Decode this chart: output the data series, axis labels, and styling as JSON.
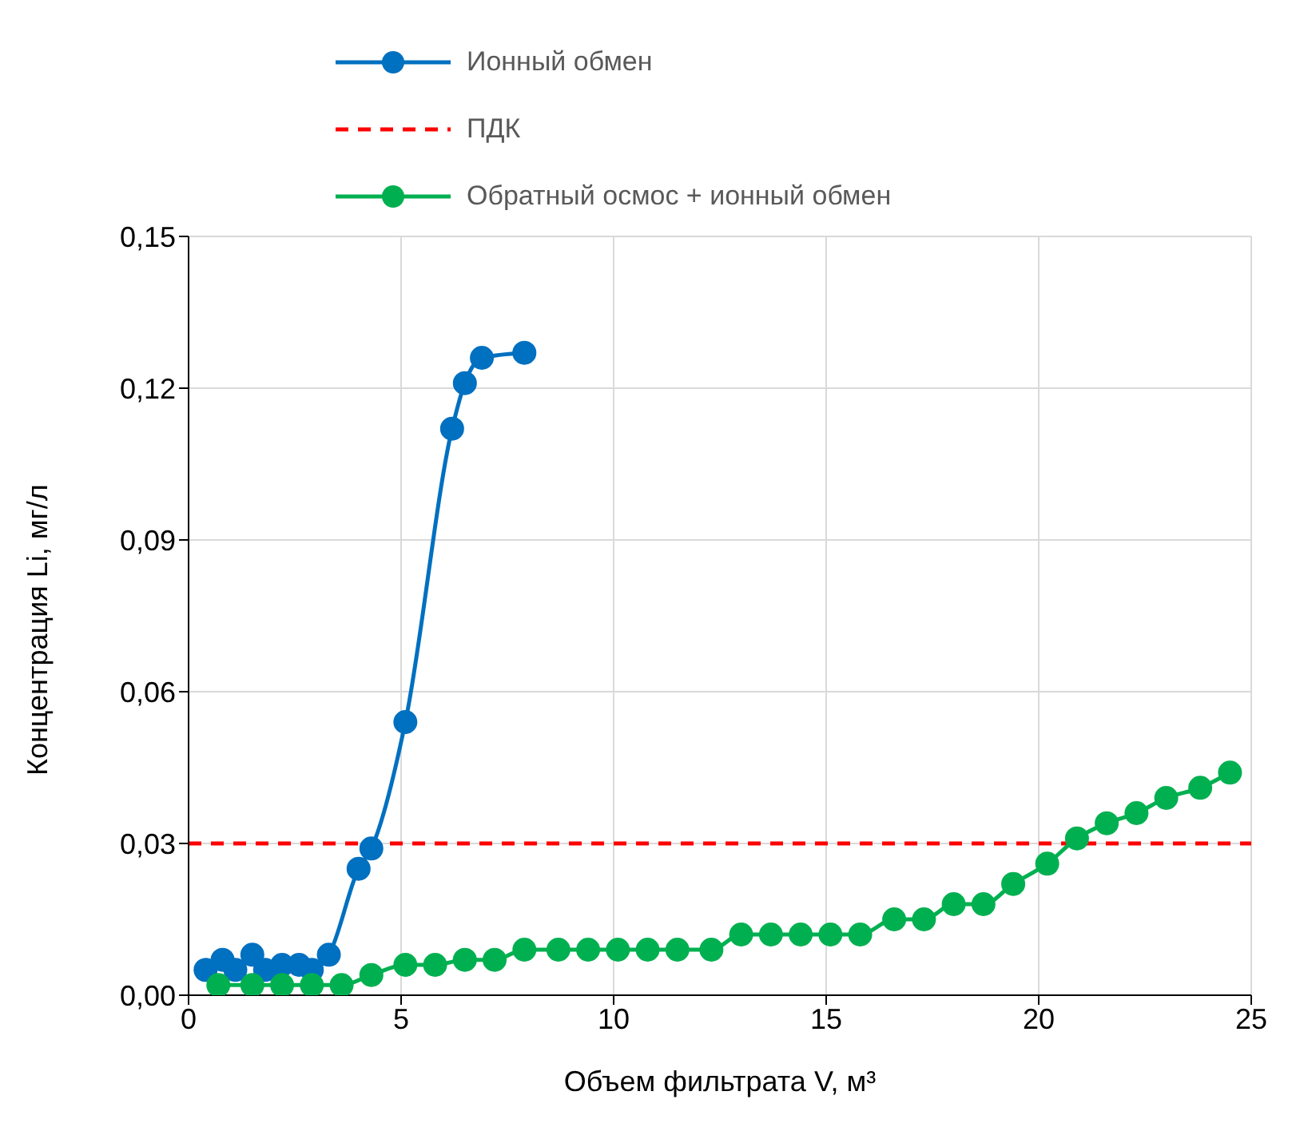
{
  "chart_data": {
    "type": "line",
    "xlabel": "Объем фильтрата V, м³",
    "ylabel": "Концентрация Li, мг/л",
    "xlim": [
      0,
      25
    ],
    "xticks": [
      0,
      5,
      10,
      15,
      20,
      25
    ],
    "ylim": [
      0,
      0.15
    ],
    "yticks": [
      {
        "value": 0,
        "label": "0,00"
      },
      {
        "value": 0.03,
        "label": "0,03"
      },
      {
        "value": 0.06,
        "label": "0,06"
      },
      {
        "value": 0.09,
        "label": "0,09"
      },
      {
        "value": 0.12,
        "label": "0,12"
      },
      {
        "value": 0.15,
        "label": "0,15"
      }
    ],
    "grid": true,
    "legend": "top",
    "marker": "circle",
    "line_style": "solid",
    "ref_lines": [
      {
        "axis": "y",
        "value": 0.03,
        "label": "ПДК",
        "color": "#ff0000",
        "line_style": "dashed"
      }
    ],
    "series": [
      {
        "name": "Ионный обмен",
        "color": "#0070c0",
        "x": [
          0.4,
          0.8,
          1.1,
          1.5,
          1.8,
          2.2,
          2.6,
          2.9,
          3.3,
          4.0,
          4.3,
          5.1,
          6.2,
          6.5,
          6.9,
          7.9
        ],
        "values": [
          0.005,
          0.007,
          0.005,
          0.008,
          0.005,
          0.006,
          0.006,
          0.005,
          0.008,
          0.025,
          0.029,
          0.054,
          0.112,
          0.121,
          0.126,
          0.127
        ]
      },
      {
        "name": "Обратный осмос + ионный обмен",
        "color": "#00b050",
        "x": [
          0.7,
          1.5,
          2.2,
          2.9,
          3.6,
          4.3,
          5.1,
          5.8,
          6.5,
          7.2,
          7.9,
          8.7,
          9.4,
          10.1,
          10.8,
          11.5,
          12.3,
          13.0,
          13.7,
          14.4,
          15.1,
          15.8,
          16.6,
          17.3,
          18.0,
          18.7,
          19.4,
          20.2,
          20.9,
          21.6,
          22.3,
          23.0,
          23.8,
          24.5
        ],
        "values": [
          0.002,
          0.002,
          0.002,
          0.002,
          0.002,
          0.004,
          0.006,
          0.006,
          0.007,
          0.007,
          0.009,
          0.009,
          0.009,
          0.009,
          0.009,
          0.009,
          0.009,
          0.012,
          0.012,
          0.012,
          0.012,
          0.012,
          0.015,
          0.015,
          0.018,
          0.018,
          0.022,
          0.026,
          0.031,
          0.034,
          0.036,
          0.039,
          0.041,
          0.044
        ]
      }
    ]
  }
}
